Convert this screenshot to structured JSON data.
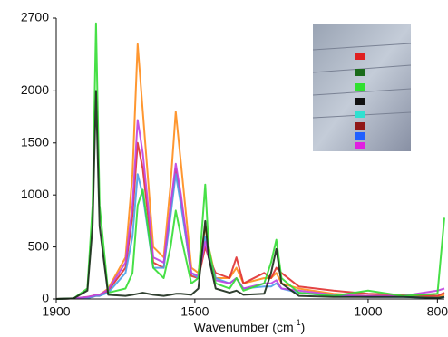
{
  "chart_data": {
    "type": "line",
    "x_label": "Wavenumber (cm",
    "x_label_sup": "-1",
    "x_label_end": ")",
    "xlim": [
      1900,
      780
    ],
    "xticks": [
      1900,
      1500,
      1000,
      800
    ],
    "ylim": [
      0,
      2700
    ],
    "yticks": [
      0,
      500,
      1000,
      1500,
      2000,
      2700
    ],
    "x": [
      1900,
      1850,
      1810,
      1795,
      1785,
      1775,
      1750,
      1700,
      1680,
      1665,
      1650,
      1620,
      1590,
      1570,
      1555,
      1540,
      1510,
      1490,
      1470,
      1460,
      1440,
      1400,
      1380,
      1360,
      1300,
      1280,
      1265,
      1250,
      1200,
      1100,
      1000,
      900,
      800,
      780
    ],
    "series": [
      {
        "color": "#ff8c1a",
        "values": [
          0,
          5,
          20,
          30,
          40,
          40,
          100,
          400,
          1200,
          2450,
          1800,
          500,
          400,
          1100,
          1800,
          1300,
          300,
          250,
          700,
          500,
          200,
          200,
          300,
          150,
          200,
          200,
          250,
          150,
          100,
          50,
          30,
          30,
          20,
          40
        ]
      },
      {
        "color": "#e03030",
        "values": [
          0,
          5,
          10,
          20,
          30,
          30,
          80,
          300,
          800,
          1500,
          1250,
          350,
          300,
          850,
          1250,
          950,
          220,
          200,
          500,
          400,
          250,
          200,
          400,
          150,
          250,
          200,
          300,
          250,
          120,
          80,
          50,
          40,
          30,
          60
        ]
      },
      {
        "color": "#4aa0e8",
        "values": [
          0,
          5,
          10,
          20,
          30,
          30,
          60,
          250,
          600,
          1200,
          1000,
          300,
          300,
          800,
          1200,
          900,
          250,
          200,
          600,
          450,
          200,
          150,
          200,
          100,
          120,
          120,
          150,
          100,
          60,
          30,
          20,
          20,
          10,
          20
        ]
      },
      {
        "color": "#c040e0",
        "values": [
          0,
          5,
          20,
          30,
          40,
          40,
          90,
          350,
          900,
          1720,
          1400,
          400,
          350,
          900,
          1300,
          1000,
          250,
          220,
          550,
          400,
          180,
          150,
          200,
          100,
          150,
          150,
          180,
          100,
          80,
          40,
          30,
          30,
          80,
          100
        ]
      },
      {
        "color": "#33dd33",
        "values": [
          0,
          5,
          100,
          900,
          2650,
          900,
          60,
          100,
          250,
          900,
          1050,
          300,
          200,
          500,
          850,
          600,
          150,
          200,
          1100,
          500,
          150,
          100,
          200,
          80,
          150,
          350,
          570,
          200,
          60,
          30,
          80,
          30,
          50,
          780
        ]
      },
      {
        "color": "#1a2a1a",
        "values": [
          0,
          5,
          80,
          700,
          2000,
          700,
          40,
          30,
          40,
          50,
          60,
          40,
          30,
          40,
          50,
          50,
          40,
          100,
          750,
          400,
          100,
          60,
          80,
          40,
          50,
          250,
          480,
          150,
          30,
          20,
          20,
          20,
          10,
          20
        ]
      }
    ]
  }
}
